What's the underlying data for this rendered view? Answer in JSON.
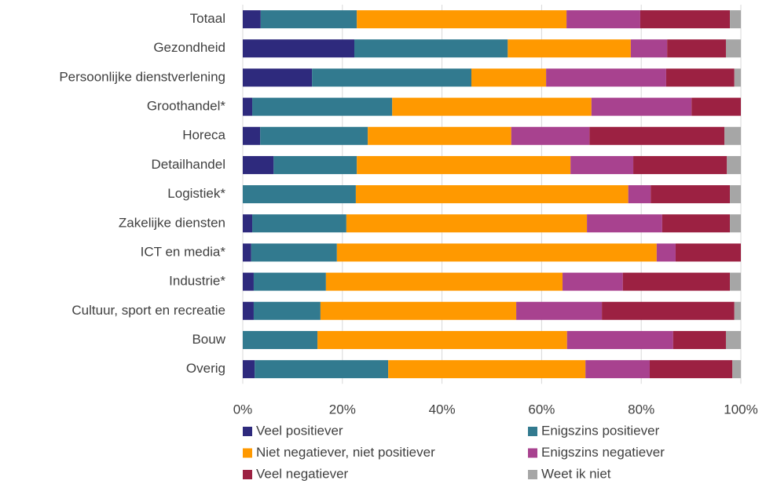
{
  "chart_data": {
    "type": "stacked-barh",
    "categories": [
      "Totaal",
      "Gezondheid",
      "Persoonlijke dienstverlening",
      "Groothandel*",
      "Horeca",
      "Detailhandel",
      "Logistiek*",
      "Zakelijke diensten",
      "ICT en media*",
      "Industrie*",
      "Cultuur, sport en recreatie",
      "Bouw",
      "Overig"
    ],
    "series": [
      {
        "name": "Veel positiever",
        "color": "#2e2a7d",
        "values": [
          3.6,
          22.4,
          13.9,
          1.9,
          3.5,
          6.2,
          0,
          1.9,
          1.7,
          2.2,
          2.2,
          0,
          2.4
        ]
      },
      {
        "name": "Enigszins positiever",
        "color": "#327a8f",
        "values": [
          19.3,
          30.8,
          32.0,
          28.1,
          21.6,
          16.7,
          22.7,
          18.9,
          17.2,
          14.5,
          13.4,
          15.0,
          26.8
        ]
      },
      {
        "name": "Niet negatiever, niet positiever",
        "color": "#ff9900",
        "values": [
          42.1,
          24.7,
          15.0,
          40.0,
          28.8,
          42.9,
          54.7,
          48.3,
          64.2,
          47.5,
          39.3,
          50.1,
          39.6
        ]
      },
      {
        "name": "Enigszins negatiever",
        "color": "#a8428f",
        "values": [
          14.8,
          7.3,
          24.1,
          20.1,
          15.7,
          12.6,
          4.5,
          15.1,
          3.8,
          12.1,
          17.2,
          21.3,
          12.9
        ]
      },
      {
        "name": "Veel negatiever",
        "color": "#9c2142",
        "values": [
          18.0,
          11.8,
          13.7,
          9.9,
          27.1,
          18.8,
          15.9,
          13.6,
          13.1,
          21.5,
          26.6,
          10.6,
          16.6
        ]
      },
      {
        "name": "Weet ik niet",
        "color": "#a6a6a6",
        "values": [
          2.2,
          3.0,
          1.3,
          0,
          3.3,
          2.8,
          2.2,
          2.2,
          0,
          2.2,
          1.3,
          3.0,
          1.7
        ]
      }
    ],
    "xlim": [
      0,
      100
    ],
    "xticks": [
      {
        "value": 0,
        "label": "0%"
      },
      {
        "value": 20,
        "label": "20%"
      },
      {
        "value": 40,
        "label": "40%"
      },
      {
        "value": 60,
        "label": "60%"
      },
      {
        "value": 80,
        "label": "80%"
      },
      {
        "value": 100,
        "label": "100%"
      }
    ],
    "grid": true
  }
}
